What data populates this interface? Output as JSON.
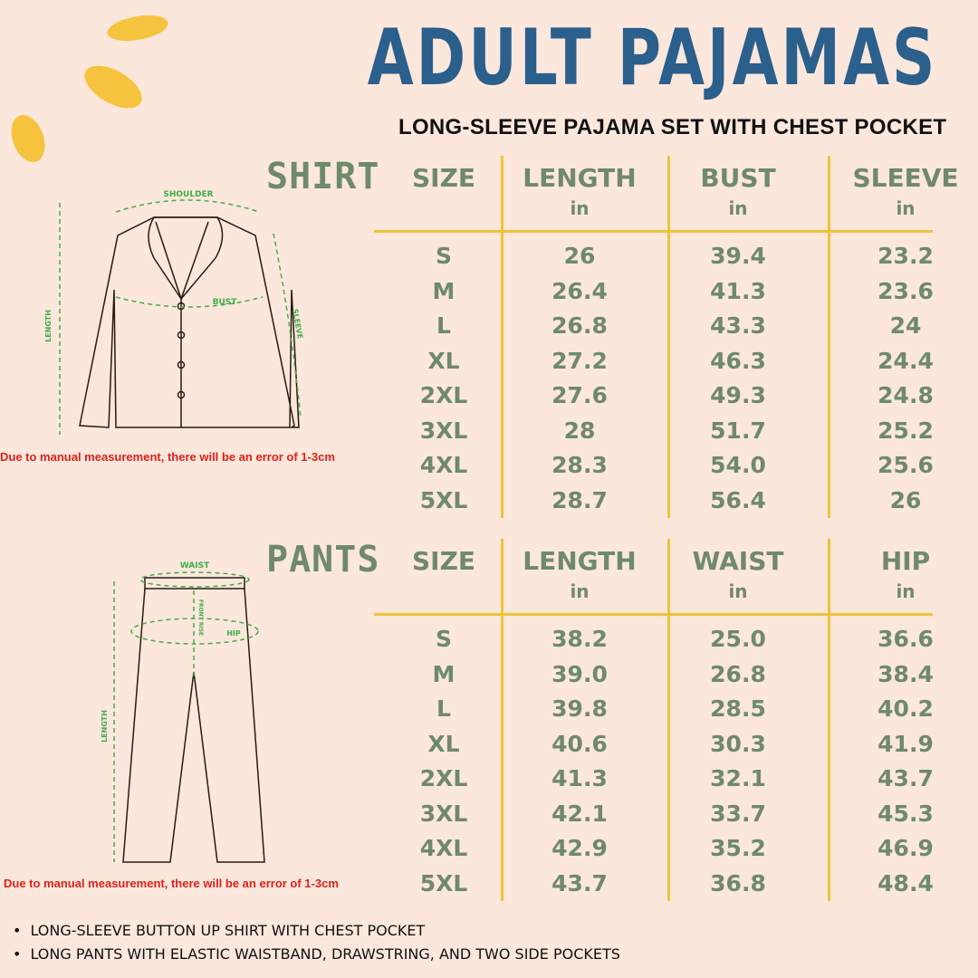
{
  "title": "ADULT PAJAMAS",
  "subtitle": "LONG-SLEEVE PAJAMA SET WITH CHEST POCKET",
  "colors": {
    "background": "#fbe7db",
    "title": "#2b5f8c",
    "accent": "#f0c23a",
    "text": "#6f8a6b",
    "measure": "#3fae4a",
    "warning": "#e0201c"
  },
  "shirt": {
    "label": "SHIRT",
    "headers": [
      "SIZE",
      "LENGTH",
      "BUST",
      "SLEEVE"
    ],
    "units": [
      "",
      "in",
      "in",
      "in"
    ],
    "rows": [
      [
        "S",
        "26",
        "39.4",
        "23.2"
      ],
      [
        "M",
        "26.4",
        "41.3",
        "23.6"
      ],
      [
        "L",
        "26.8",
        "43.3",
        "24"
      ],
      [
        "XL",
        "27.2",
        "46.3",
        "24.4"
      ],
      [
        "2XL",
        "27.6",
        "49.3",
        "24.8"
      ],
      [
        "3XL",
        "28",
        "51.7",
        "25.2"
      ],
      [
        "4XL",
        "28.3",
        "54.0",
        "25.6"
      ],
      [
        "5XL",
        "28.7",
        "56.4",
        "26"
      ]
    ],
    "diagram_labels": {
      "shoulder": "SHOULDER",
      "bust": "BUST",
      "length": "LENGTH",
      "sleeve": "SLEEVE"
    },
    "note": "Due to manual measurement, there will be an error of 1-3cm"
  },
  "pants": {
    "label": "PANTS",
    "headers": [
      "SIZE",
      "LENGTH",
      "WAIST",
      "HIP"
    ],
    "units": [
      "",
      "in",
      "in",
      "in"
    ],
    "rows": [
      [
        "S",
        "38.2",
        "25.0",
        "36.6"
      ],
      [
        "M",
        "39.0",
        "26.8",
        "38.4"
      ],
      [
        "L",
        "39.8",
        "28.5",
        "40.2"
      ],
      [
        "XL",
        "40.6",
        "30.3",
        "41.9"
      ],
      [
        "2XL",
        "41.3",
        "32.1",
        "43.7"
      ],
      [
        "3XL",
        "42.1",
        "33.7",
        "45.3"
      ],
      [
        "4XL",
        "42.9",
        "35.2",
        "46.9"
      ],
      [
        "5XL",
        "43.7",
        "36.8",
        "48.4"
      ]
    ],
    "diagram_labels": {
      "waist": "WAIST",
      "front_rise": "FRONT RISE",
      "hip": "HIP",
      "length": "LENGTH"
    },
    "note": "Due to manual measurement, there will be an error of 1-3cm"
  },
  "features": [
    "LONG-SLEEVE BUTTON UP SHIRT WITH CHEST POCKET",
    "LONG PANTS WITH ELASTIC WAISTBAND, DRAWSTRING, AND TWO SIDE POCKETS"
  ]
}
